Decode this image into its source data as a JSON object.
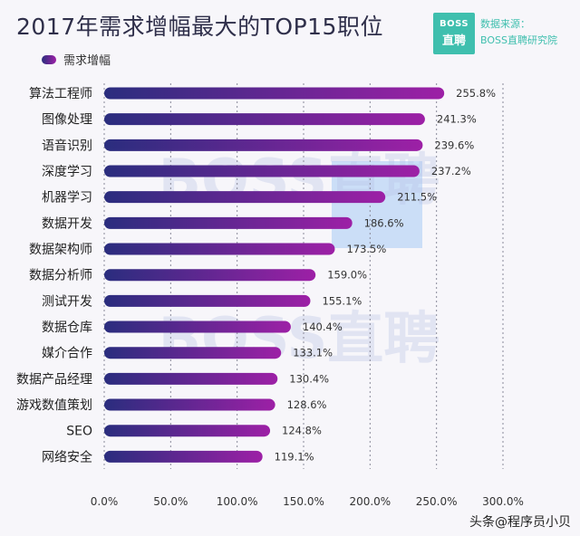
{
  "header": {
    "title": "2017年需求增幅最大的TOP15职位",
    "legend_label": "需求增幅"
  },
  "logo": {
    "line1": "BOSS",
    "line2": "直聘"
  },
  "source": {
    "line1": "数据来源：",
    "line2": "BOSS直聘研究院"
  },
  "footer": {
    "text": "头条@程序员小贝"
  },
  "watermark": {
    "text": "BOSS直聘"
  },
  "colors": {
    "bar_start": "#2a2d7e",
    "bar_end": "#9d20a6",
    "brand": "#3fbfae"
  },
  "chart_data": {
    "type": "bar",
    "orientation": "horizontal",
    "categories": [
      "算法工程师",
      "图像处理",
      "语音识别",
      "深度学习",
      "机器学习",
      "数据开发",
      "数据架构师",
      "数据分析师",
      "测试开发",
      "数据仓库",
      "媒介合作",
      "数据产品经理",
      "游戏数值策划",
      "SEO",
      "网络安全"
    ],
    "series": [
      {
        "name": "需求增幅",
        "values": [
          255.8,
          241.3,
          239.6,
          237.2,
          211.5,
          186.6,
          173.5,
          159.0,
          155.1,
          140.4,
          133.1,
          130.4,
          128.6,
          124.8,
          119.1
        ]
      }
    ],
    "data_labels": [
      "255.8%",
      "241.3%",
      "239.6%",
      "237.2%",
      "211.5%",
      "186.6%",
      "173.5%",
      "159.0%",
      "155.1%",
      "140.4%",
      "133.1%",
      "130.4%",
      "128.6%",
      "124.8%",
      "119.1%"
    ],
    "x_ticks": [
      "0.0%",
      "50.0%",
      "100.0%",
      "150.0%",
      "200.0%",
      "250.0%",
      "300.0%"
    ],
    "xlim": [
      0,
      300
    ],
    "grid": "vertical dotted",
    "legend": "top-left"
  }
}
